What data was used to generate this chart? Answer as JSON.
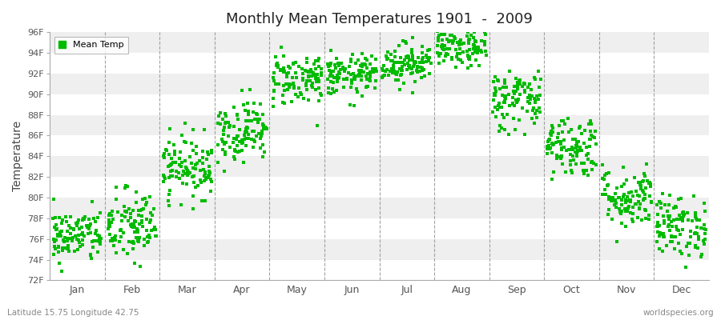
{
  "title": "Monthly Mean Temperatures 1901  -  2009",
  "ylabel": "Temperature",
  "bottom_left": "Latitude 15.75 Longitude 42.75",
  "bottom_right": "worldspecies.org",
  "legend_label": "Mean Temp",
  "dot_color": "#00BB00",
  "stripe_color": "#EFEFEF",
  "ylim": [
    72,
    96
  ],
  "ytick_step": 2,
  "months": [
    "Jan",
    "Feb",
    "Mar",
    "Apr",
    "May",
    "Jun",
    "Jul",
    "Aug",
    "Sep",
    "Oct",
    "Nov",
    "Dec"
  ],
  "monthly_means": [
    76.3,
    77.2,
    83.0,
    86.5,
    91.5,
    91.8,
    93.0,
    94.5,
    89.5,
    85.0,
    80.0,
    77.2
  ],
  "monthly_stds": [
    1.3,
    1.8,
    1.5,
    1.5,
    1.3,
    1.0,
    1.0,
    1.0,
    1.5,
    1.5,
    1.5,
    1.5
  ],
  "n_years": 109
}
